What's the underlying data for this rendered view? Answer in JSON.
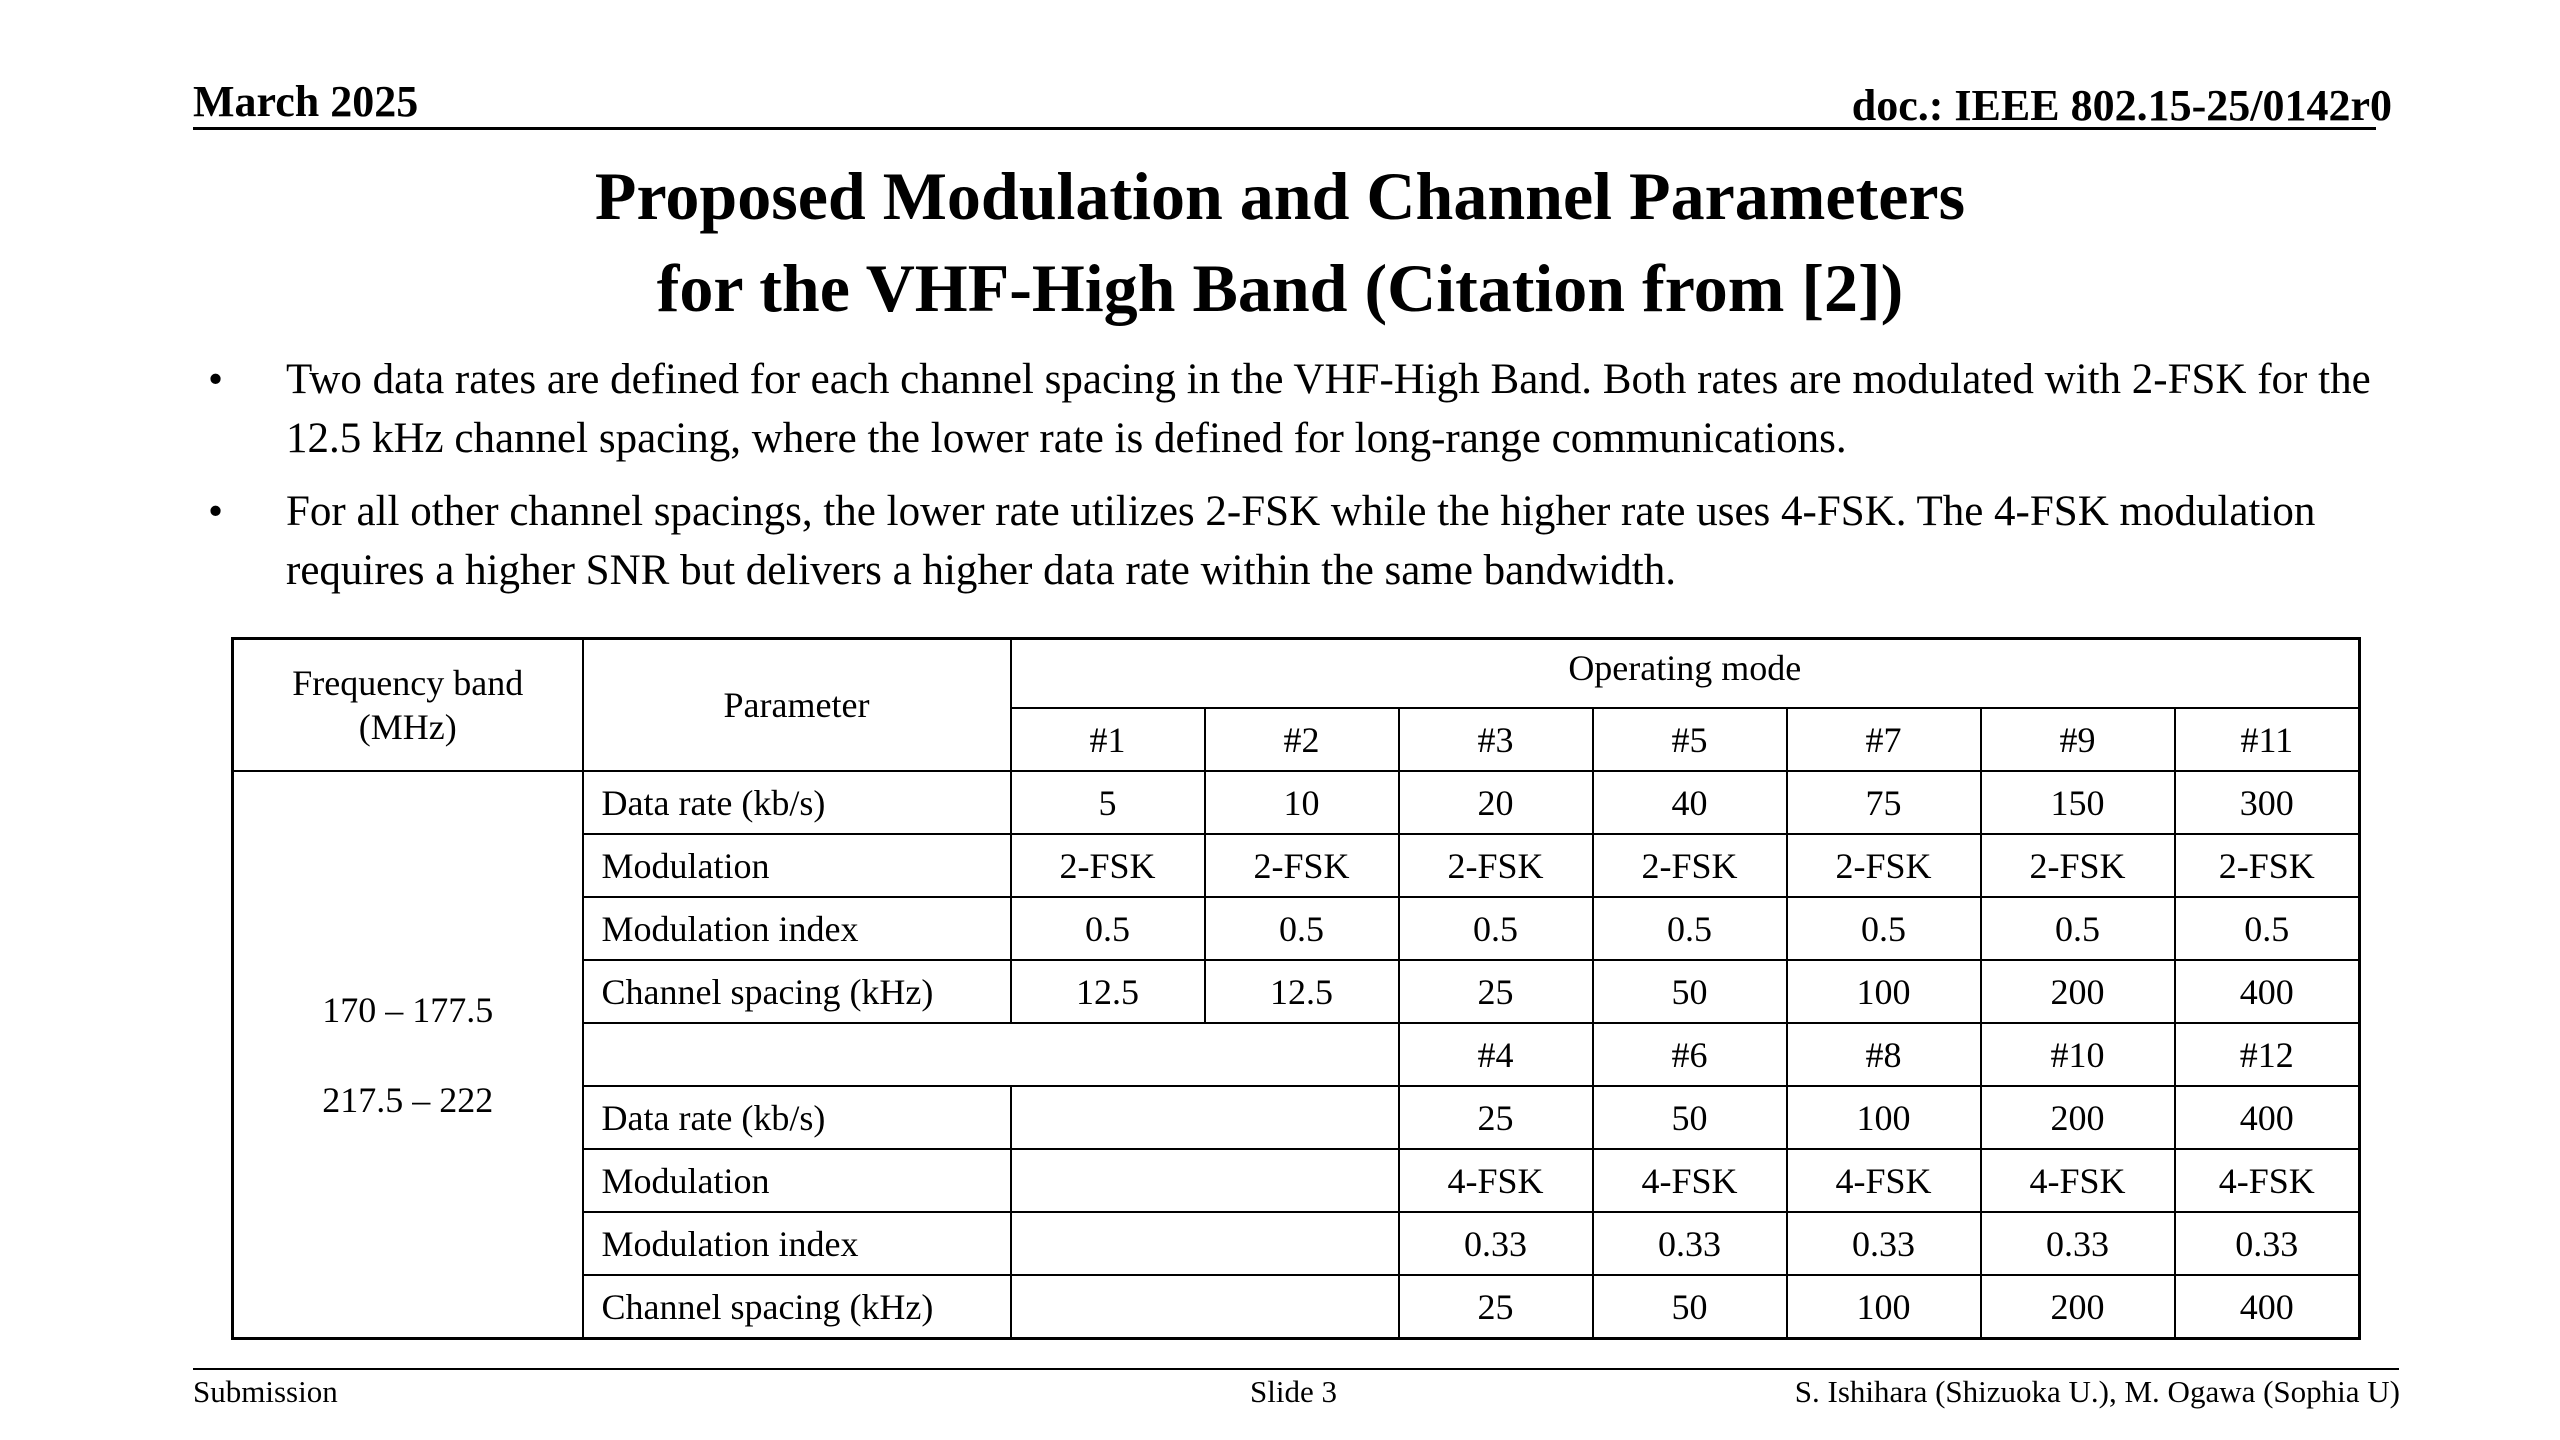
{
  "header": {
    "date": "March 2025",
    "doc": "doc.: IEEE 802.15-25/0142r0"
  },
  "title": {
    "line1": "Proposed Modulation and Channel Parameters",
    "line2": "for the VHF-High Band  (Citation from [2])"
  },
  "bullets": [
    {
      "marker": "•",
      "text": "Two data rates are defined for each channel spacing in the VHF-High Band. Both rates are modulated with 2-FSK for the 12.5 kHz channel spacing, where the lower rate is defined for long-range communications."
    },
    {
      "marker": "•",
      "text": "For all other channel spacings, the lower rate utilizes 2-FSK while the higher rate uses 4-FSK. The 4-FSK modulation requires a higher SNR but delivers a higher data rate within the same bandwidth."
    }
  ],
  "table": {
    "head": {
      "freq_band": "Frequency band (MHz)",
      "parameter": "Parameter",
      "operating_mode": "Operating mode",
      "modes_a": [
        "#1",
        "#2",
        "#3",
        "#5",
        "#7",
        "#9",
        "#11"
      ]
    },
    "band": {
      "line1": "170 – 177.5",
      "line2": "217.5 – 222"
    },
    "group_a": [
      {
        "param": "Data rate (kb/s)",
        "values": [
          "5",
          "10",
          "20",
          "40",
          "75",
          "150",
          "300"
        ]
      },
      {
        "param": "Modulation",
        "values": [
          "2-FSK",
          "2-FSK",
          "2-FSK",
          "2-FSK",
          "2-FSK",
          "2-FSK",
          "2-FSK"
        ]
      },
      {
        "param": "Modulation index",
        "values": [
          "0.5",
          "0.5",
          "0.5",
          "0.5",
          "0.5",
          "0.5",
          "0.5"
        ]
      },
      {
        "param": "Channel spacing (kHz)",
        "values": [
          "12.5",
          "12.5",
          "25",
          "50",
          "100",
          "200",
          "400"
        ]
      }
    ],
    "modes_b": [
      "#4",
      "#6",
      "#8",
      "#10",
      "#12"
    ],
    "group_b": [
      {
        "param": "Data rate (kb/s)",
        "values": [
          "25",
          "50",
          "100",
          "200",
          "400"
        ]
      },
      {
        "param": "Modulation",
        "values": [
          "4-FSK",
          "4-FSK",
          "4-FSK",
          "4-FSK",
          "4-FSK"
        ]
      },
      {
        "param": "Modulation index",
        "values": [
          "0.33",
          "0.33",
          "0.33",
          "0.33",
          "0.33"
        ]
      },
      {
        "param": "Channel spacing (kHz)",
        "values": [
          "25",
          "50",
          "100",
          "200",
          "400"
        ]
      }
    ]
  },
  "footer": {
    "left": "Submission",
    "center": "Slide 3",
    "right": "S. Ishihara (Shizuoka U.), M. Ogawa (Sophia U)"
  }
}
